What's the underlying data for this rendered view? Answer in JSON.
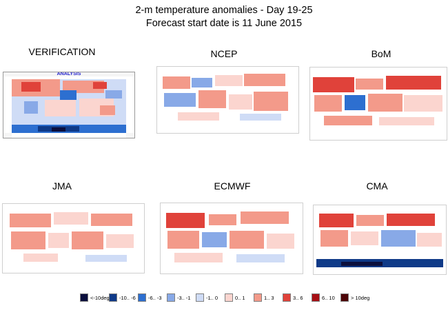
{
  "header": {
    "title_line1": "2-m temperature anomalies -  Day 19-25",
    "title_line2": "Forecast start date is 11 June 2015"
  },
  "panels": [
    {
      "id": "verification",
      "label": "VERIFICATION",
      "inner_label": "ANALYSIS"
    },
    {
      "id": "ncep",
      "label": "NCEP"
    },
    {
      "id": "bom",
      "label": "BoM"
    },
    {
      "id": "jma",
      "label": "JMA"
    },
    {
      "id": "ecmwf",
      "label": "ECMWF"
    },
    {
      "id": "cma",
      "label": "CMA"
    }
  ],
  "legend": [
    {
      "label": "<-10deg",
      "color": "#0b0f3d"
    },
    {
      "label": "-10.. -6",
      "color": "#0f3a88"
    },
    {
      "label": "-6.. -3",
      "color": "#2d6fd0"
    },
    {
      "label": "-3.. -1",
      "color": "#88a9e7"
    },
    {
      "label": "-1.. 0",
      "color": "#cfdcf6"
    },
    {
      "label": "0.. 1",
      "color": "#fbd5cf"
    },
    {
      "label": "1.. 3",
      "color": "#f39a8a"
    },
    {
      "label": "3.. 6",
      "color": "#e0423a"
    },
    {
      "label": "6.. 10",
      "color": "#a60f14"
    },
    {
      "label": "> 10deg",
      "color": "#4d0508"
    }
  ]
}
